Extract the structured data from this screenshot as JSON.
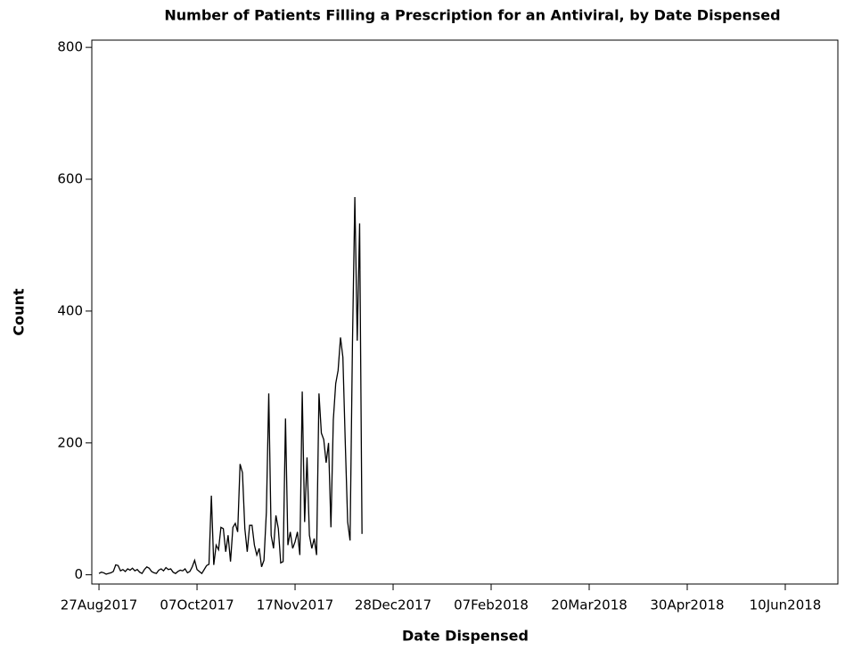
{
  "chart_data": {
    "type": "line",
    "title": "Number of Patients Filling a Prescription for an Antiviral, by Date Dispensed",
    "xlabel": "Date Dispensed",
    "ylabel": "Count",
    "color": "#000000",
    "x": [
      "2017-08-27",
      "2017-08-28",
      "2017-08-29",
      "2017-08-30",
      "2017-08-31",
      "2017-09-01",
      "2017-09-02",
      "2017-09-03",
      "2017-09-04",
      "2017-09-05",
      "2017-09-06",
      "2017-09-07",
      "2017-09-08",
      "2017-09-09",
      "2017-09-10",
      "2017-09-11",
      "2017-09-12",
      "2017-09-13",
      "2017-09-14",
      "2017-09-15",
      "2017-09-16",
      "2017-09-17",
      "2017-09-18",
      "2017-09-19",
      "2017-09-20",
      "2017-09-21",
      "2017-09-22",
      "2017-09-23",
      "2017-09-24",
      "2017-09-25",
      "2017-09-26",
      "2017-09-27",
      "2017-09-28",
      "2017-09-29",
      "2017-09-30",
      "2017-10-01",
      "2017-10-02",
      "2017-10-03",
      "2017-10-04",
      "2017-10-05",
      "2017-10-06",
      "2017-10-07",
      "2017-10-08",
      "2017-10-09",
      "2017-10-10",
      "2017-10-11",
      "2017-10-12",
      "2017-10-13",
      "2017-10-14",
      "2017-10-15",
      "2017-10-16",
      "2017-10-17",
      "2017-10-18",
      "2017-10-19",
      "2017-10-20",
      "2017-10-21",
      "2017-10-22",
      "2017-10-23",
      "2017-10-24",
      "2017-10-25",
      "2017-10-26",
      "2017-10-27",
      "2017-10-28",
      "2017-10-29",
      "2017-10-30",
      "2017-10-31",
      "2017-11-01",
      "2017-11-02",
      "2017-11-03",
      "2017-11-04",
      "2017-11-05",
      "2017-11-06",
      "2017-11-07",
      "2017-11-08",
      "2017-11-09",
      "2017-11-10",
      "2017-11-11",
      "2017-11-12",
      "2017-11-13",
      "2017-11-14",
      "2017-11-15",
      "2017-11-16",
      "2017-11-17",
      "2017-11-18",
      "2017-11-19",
      "2017-11-20",
      "2017-11-21",
      "2017-11-22",
      "2017-11-23",
      "2017-11-24",
      "2017-11-25",
      "2017-11-26",
      "2017-11-27",
      "2017-11-28",
      "2017-11-29",
      "2017-11-30",
      "2017-12-01",
      "2017-12-02",
      "2017-12-03",
      "2017-12-04",
      "2017-12-05",
      "2017-12-06",
      "2017-12-07",
      "2017-12-08",
      "2017-12-09",
      "2017-12-10",
      "2017-12-11",
      "2017-12-12",
      "2017-12-13",
      "2017-12-14",
      "2017-12-15"
    ],
    "values": [
      2,
      4,
      3,
      1,
      2,
      3,
      5,
      15,
      14,
      6,
      8,
      5,
      9,
      7,
      10,
      6,
      8,
      4,
      2,
      8,
      12,
      10,
      5,
      3,
      2,
      7,
      9,
      6,
      11,
      8,
      9,
      4,
      2,
      5,
      7,
      6,
      9,
      3,
      5,
      12,
      22,
      8,
      5,
      2,
      8,
      14,
      16,
      120,
      15,
      45,
      38,
      72,
      70,
      35,
      60,
      20,
      72,
      78,
      65,
      168,
      155,
      70,
      35,
      75,
      75,
      45,
      30,
      40,
      12,
      22,
      95,
      275,
      60,
      40,
      90,
      70,
      18,
      20,
      237,
      45,
      65,
      40,
      50,
      65,
      30,
      278,
      80,
      178,
      60,
      40,
      55,
      30,
      275,
      215,
      205,
      170,
      200,
      72,
      235,
      290,
      310,
      360,
      330,
      200,
      80,
      52,
      350,
      573,
      355,
      533,
      62
    ],
    "xlim": [
      "2017-08-24",
      "2018-07-02"
    ],
    "xticks": [
      {
        "value": "2017-08-27",
        "label": "27Aug2017"
      },
      {
        "value": "2017-10-07",
        "label": "07Oct2017"
      },
      {
        "value": "2017-11-17",
        "label": "17Nov2017"
      },
      {
        "value": "2017-12-28",
        "label": "28Dec2017"
      },
      {
        "value": "2018-02-07",
        "label": "07Feb2018"
      },
      {
        "value": "2018-03-20",
        "label": "20Mar2018"
      },
      {
        "value": "2018-04-30",
        "label": "30Apr2018"
      },
      {
        "value": "2018-06-10",
        "label": "10Jun2018"
      }
    ],
    "ylim": [
      -14,
      811
    ],
    "yticks": [
      0,
      200,
      400,
      600,
      800
    ]
  }
}
